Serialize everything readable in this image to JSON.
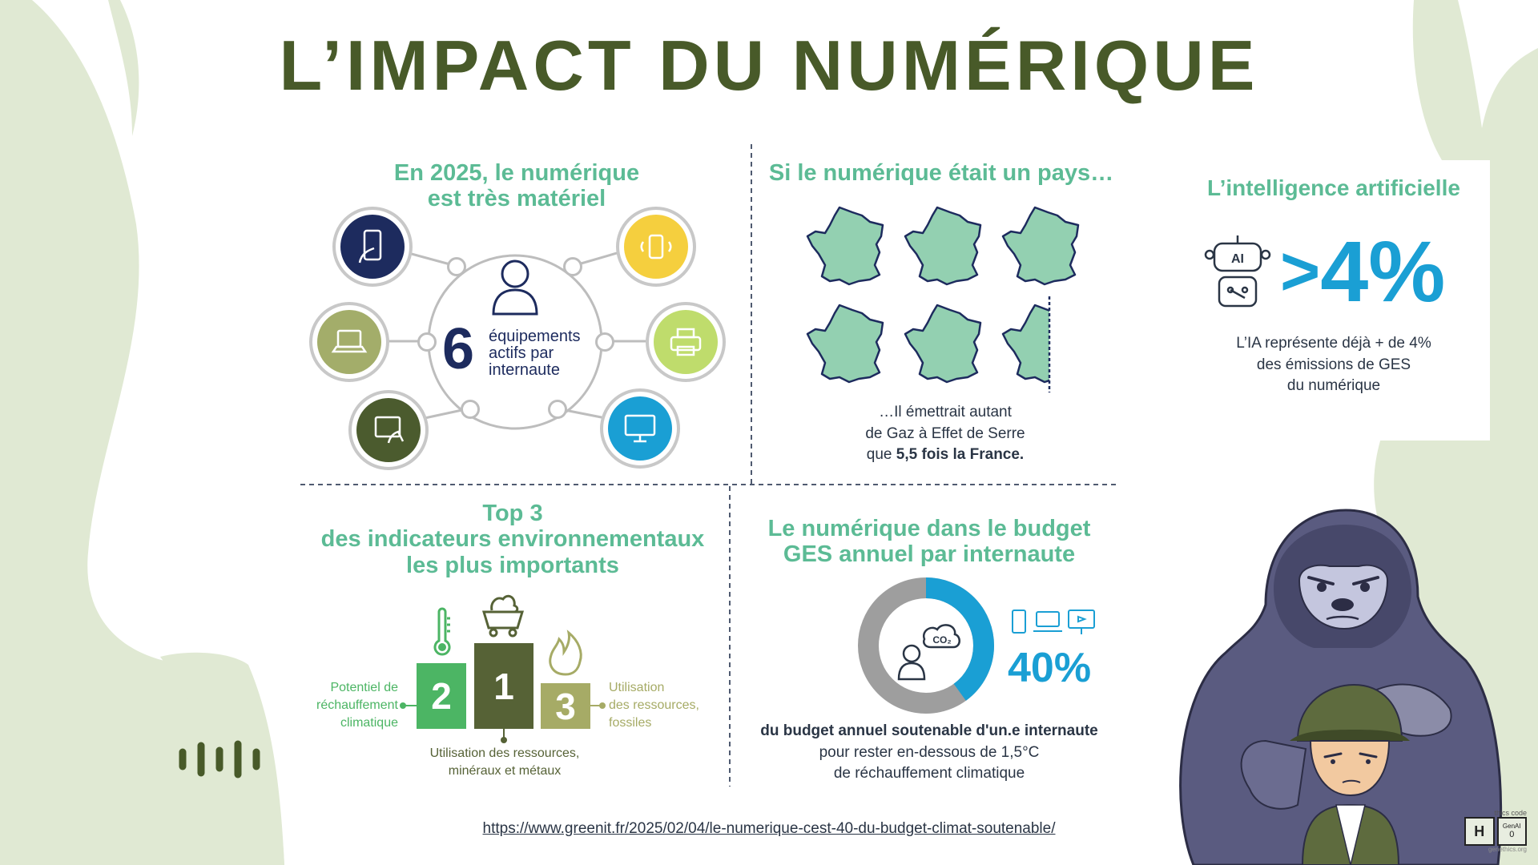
{
  "title": "L’IMPACT DU NUMÉRIQUE",
  "section1": {
    "title_line1": "En 2025, le numérique",
    "title_line2": "est très matériel",
    "big_number": "6",
    "label_line1": "équipements",
    "label_line2": "actifs par",
    "label_line3": "internaute"
  },
  "section2": {
    "title": "Si le numérique était un pays…",
    "text_line1": "…Il émettrait autant",
    "text_line2": "de Gaz à Effet de Serre",
    "text_line3_prefix": "que ",
    "text_line3_bold": "5,5 fois la France.",
    "france_count": 5.5
  },
  "section3": {
    "title": "L’intelligence artificielle",
    "ai_icon_text": "AI",
    "stat_prefix": ">",
    "stat_value": "4%",
    "text_line1": "L’IA représente déjà + de 4%",
    "text_line2": "des émissions de GES",
    "text_line3": "du numérique"
  },
  "section4": {
    "title_line1": "Top 3",
    "title_line2": "des indicateurs environnementaux",
    "title_line3": "les plus importants",
    "bars": [
      {
        "rank": "2",
        "color": "#4cb564"
      },
      {
        "rank": "1",
        "color": "#566236"
      },
      {
        "rank": "3",
        "color": "#a6ab66"
      }
    ],
    "left_label": [
      "Potentiel de",
      "réchauffement",
      "climatique"
    ],
    "bottom_label": [
      "Utilisation des ressources,",
      "minéraux et métaux"
    ],
    "right_label": [
      "Utilisation",
      "des ressources,",
      "fossiles"
    ]
  },
  "section5": {
    "title_line1": "Le numérique dans le budget",
    "title_line2": "GES annuel par internaute",
    "co2_text": "CO₂",
    "percent": "40%",
    "percent_value": 40,
    "text_line1": "du budget annuel soutenable d'un.e internaute",
    "text_line2": "pour rester en-dessous de 1,5°C",
    "text_line3": "de réchauffement climatique"
  },
  "link": "https://www.greenit.fr/2025/02/04/le-numerique-cest-40-du-budget-climat-soutenable/",
  "badge": {
    "caption": "thics code",
    "letter": "H",
    "cell_top": "GenAI",
    "cell_bottom": "0",
    "footer": "genethics.org"
  },
  "colors": {
    "title": "#485a29",
    "heading": "#5cbb95",
    "blue": "#1a9fd4",
    "navy": "#1d2b5e",
    "mint": "#93d0b1",
    "background_shape": "#e0e9d3"
  }
}
